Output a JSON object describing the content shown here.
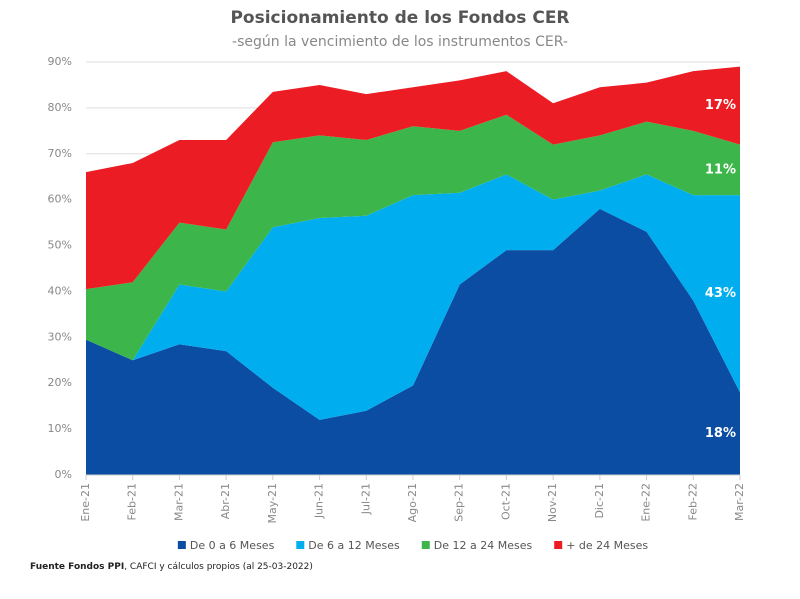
{
  "chart_data": {
    "type": "stacked_area",
    "title": "Posicionamiento de los Fondos CER",
    "subtitle": "-según la vencimiento de los instrumentos CER-",
    "categories": [
      "Ene-21",
      "Feb-21",
      "Mar-21",
      "Abr-21",
      "May-21",
      "Jun-21",
      "Jul-21",
      "Ago-21",
      "Sep-21",
      "Oct-21",
      "Nov-21",
      "Dic-21",
      "Ene-22",
      "Feb-22",
      "Mar-22"
    ],
    "series": [
      {
        "name": "De 0 a 6 Meses",
        "color": "#0a4da2",
        "values": [
          29.5,
          25,
          28.5,
          27,
          19,
          12,
          14,
          19.5,
          41.5,
          49,
          49,
          58,
          53,
          38,
          18
        ],
        "value_labels": [
          null,
          null,
          null,
          null,
          null,
          null,
          null,
          null,
          null,
          null,
          null,
          null,
          null,
          null,
          "18%"
        ]
      },
      {
        "name": "De 6 a 12 Meses",
        "color": "#00aeef",
        "values": [
          0,
          0,
          13,
          13,
          35,
          44,
          42.5,
          41.5,
          20,
          16.5,
          11,
          4,
          12.5,
          23,
          43
        ],
        "value_labels": [
          null,
          null,
          null,
          null,
          null,
          null,
          null,
          null,
          null,
          null,
          null,
          null,
          null,
          null,
          "43%"
        ]
      },
      {
        "name": "De 12 a 24 Meses",
        "color": "#3cb64a",
        "values": [
          11,
          17,
          13.5,
          13.5,
          18.5,
          18,
          16.5,
          15,
          13.5,
          13,
          12,
          12,
          11.5,
          14,
          11
        ],
        "value_labels": [
          null,
          null,
          null,
          null,
          null,
          null,
          null,
          null,
          null,
          null,
          null,
          null,
          null,
          null,
          "11%"
        ]
      },
      {
        "name": "+ de 24 Meses",
        "color": "#ec1c24",
        "values": [
          25.5,
          26,
          18,
          19.5,
          11,
          11,
          10,
          8.5,
          11,
          9.5,
          9,
          10.5,
          8.5,
          13,
          17
        ],
        "value_labels": [
          null,
          null,
          null,
          null,
          null,
          null,
          null,
          null,
          null,
          null,
          null,
          null,
          null,
          null,
          "17%"
        ]
      }
    ],
    "ylim": [
      0,
      90
    ],
    "yticks": [
      {
        "value": 0,
        "label": "0%"
      },
      {
        "value": 10,
        "label": "10%"
      },
      {
        "value": 20,
        "label": "20%"
      },
      {
        "value": 30,
        "label": "30%"
      },
      {
        "value": 40,
        "label": "40%"
      },
      {
        "value": 50,
        "label": "50%"
      },
      {
        "value": 60,
        "label": "60%"
      },
      {
        "value": 70,
        "label": "70%"
      },
      {
        "value": 80,
        "label": "80%"
      },
      {
        "value": 90,
        "label": "90%"
      }
    ],
    "grid": true,
    "legend": "bottom",
    "source": {
      "bold": "Fuente Fondos PPI",
      "text": ", CAFCI y cálculos propios (al 25-03-2022)"
    }
  }
}
